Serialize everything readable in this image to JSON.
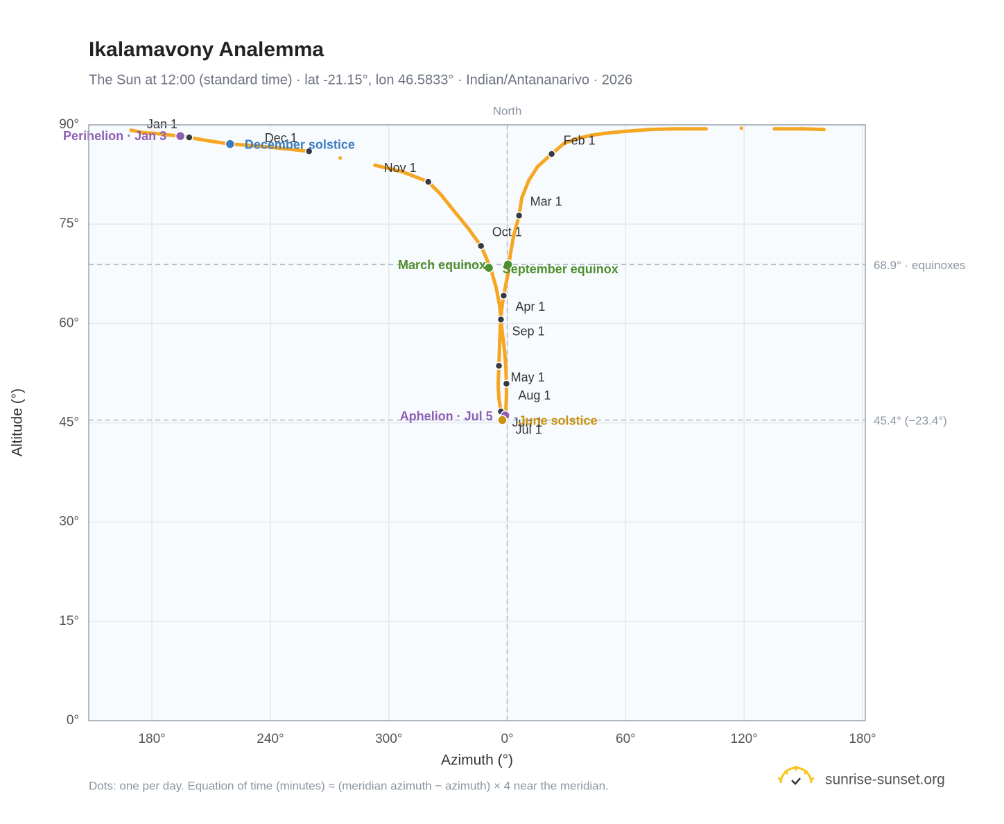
{
  "chart_data": {
    "type": "scatter",
    "title": "Ikalamavony Analemma",
    "subtitle": "The Sun at 12:00 (standard time) · lat -21.15°, lon 46.5833° · Indian/Antananarivo · 2026",
    "xlabel": "Azimuth (°)",
    "ylabel": "Altitude (°)",
    "xlim": [
      148,
      541.4
    ],
    "ylim": [
      0,
      90
    ],
    "xticks": [
      {
        "value": 180,
        "label": "180°"
      },
      {
        "value": 240,
        "label": "240°"
      },
      {
        "value": 300,
        "label": "300°"
      },
      {
        "value": 360,
        "label": "0°"
      },
      {
        "value": 420,
        "label": "60°"
      },
      {
        "value": 480,
        "label": "120°"
      },
      {
        "value": 540,
        "label": "180°"
      }
    ],
    "yticks": [
      {
        "value": 0,
        "label": "0°"
      },
      {
        "value": 15,
        "label": "15°"
      },
      {
        "value": 30,
        "label": "30°"
      },
      {
        "value": 45,
        "label": "45°"
      },
      {
        "value": 60,
        "label": "60°"
      },
      {
        "value": 75,
        "label": "75°"
      },
      {
        "value": 90,
        "label": "90°"
      }
    ],
    "grid": true,
    "north": {
      "x": 360,
      "label": "North"
    },
    "reference_lines": [
      {
        "y": 68.9,
        "label": "68.9° · equinoxes"
      },
      {
        "y": 45.4,
        "label": "45.4° (−23.4°)"
      }
    ],
    "series": [
      {
        "color": "#f5a623",
        "x": [
          198.9,
          196.5,
          194.4,
          187.7,
          181.8,
          175.8,
          169.5,
          520.4,
          509.5,
          495.4,
          478.6,
          460.7,
          444.9,
          432.6,
          423.2,
          415.4,
          409.1,
          402.1,
          395.1,
          388.8,
          382.5,
          375.4,
          370.9,
          367.4,
          366.0,
          363.2,
          361.4,
          360.4,
          359.3,
          358.2,
          357.2,
          356.5,
          356.1,
          355.8,
          355.4,
          355.8,
          356.8,
          357.5,
          357.5,
          358.6,
          359.3,
          359.6,
          359.6,
          359.3,
          358.6,
          357.5,
          356.8,
          356.1,
          354.4,
          351.9,
          349.1,
          346.7,
          340.4,
          333.3,
          326.3,
          320.0,
          307.0,
          293.0,
          275.4,
          259.6,
          243.9,
          229.8,
          219.6,
          208.4,
          198.9
        ],
        "y": [
          88.1,
          88.2,
          88.3,
          88.5,
          88.7,
          88.8,
          89.2,
          89.3,
          89.4,
          89.4,
          89.5,
          89.4,
          89.4,
          89.3,
          89.1,
          88.9,
          88.7,
          88.4,
          87.9,
          87.2,
          85.6,
          83.7,
          81.6,
          79.0,
          76.3,
          73.2,
          70.1,
          67.5,
          65.9,
          64.2,
          62.2,
          59.6,
          56.5,
          53.6,
          50.7,
          48.6,
          46.7,
          45.8,
          45.4,
          45.7,
          47.0,
          49.1,
          50.9,
          53.3,
          56.0,
          58.6,
          60.6,
          62.8,
          65.4,
          68.0,
          70.1,
          71.7,
          74.3,
          76.9,
          79.5,
          81.4,
          82.9,
          83.9,
          85.0,
          86.0,
          86.5,
          86.9,
          87.1,
          87.6,
          88.1
        ]
      }
    ],
    "months": {
      "color": "#343a42",
      "labels": [
        "Jan 1",
        "Feb 1",
        "Mar 1",
        "Apr 1",
        "May 1",
        "Jun 1",
        "Jul 1",
        "Aug 1",
        "Sep 1",
        "Oct 1",
        "Nov 1",
        "Dec 1"
      ],
      "x": [
        198.9,
        382.5,
        366.0,
        358.2,
        355.8,
        356.8,
        358.6,
        359.6,
        356.8,
        346.7,
        320.0,
        259.6
      ],
      "y": [
        88.1,
        85.6,
        76.3,
        64.2,
        53.6,
        46.7,
        45.7,
        50.9,
        60.6,
        71.7,
        81.4,
        86.0
      ]
    },
    "events": [
      {
        "label": "Perihelion · Jan 3",
        "x": 194.4,
        "y": 88.3,
        "color": "#8e5fb5"
      },
      {
        "label": "December solstice",
        "x": 219.6,
        "y": 87.1,
        "color": "#3b7cc0"
      },
      {
        "label": "March equinox",
        "x": 350.7,
        "y": 68.4,
        "color": "#4e8f2f"
      },
      {
        "label": "September equinox",
        "x": 360.4,
        "y": 68.9,
        "color": "#4e8f2f"
      },
      {
        "label": "Aphelion · Jul 5",
        "x": 359.0,
        "y": 46.1,
        "color": "#8e5fb5"
      },
      {
        "label": "June solstice",
        "x": 357.5,
        "y": 45.4,
        "color": "#c89212"
      }
    ],
    "note": "Dots: one per day. Equation of time (minutes) ≈ (meridian azimuth − azimuth) × 4 near the meridian.",
    "brand": "sunrise-sunset.org"
  }
}
